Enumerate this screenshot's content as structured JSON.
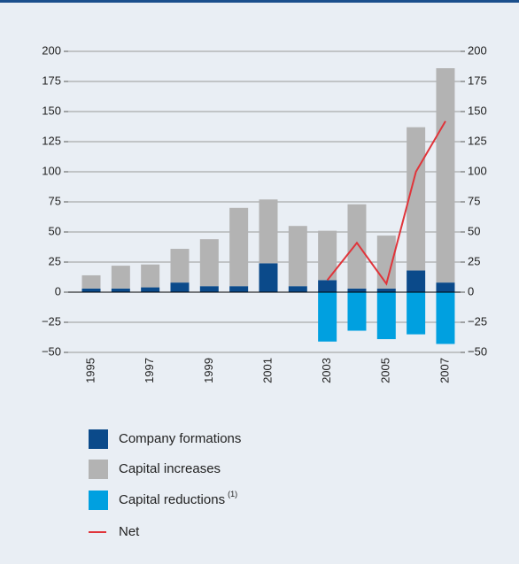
{
  "chart_data": {
    "type": "bar",
    "categories": [
      "1995",
      null,
      "1997",
      null,
      "1999",
      null,
      "2001",
      null,
      "2003",
      null,
      "2005",
      null,
      "2007"
    ],
    "series": [
      {
        "name": "Company formations",
        "color": "#0b4a8a",
        "values": [
          3,
          3,
          4,
          8,
          5,
          5,
          24,
          5,
          10,
          3,
          3,
          18,
          8
        ]
      },
      {
        "name": "Capital increases",
        "color": "#b3b3b3",
        "values": [
          11,
          19,
          19,
          28,
          39,
          65,
          53,
          50,
          41,
          70,
          44,
          119,
          178
        ]
      },
      {
        "name": "Capital reductions",
        "name_note": "(1)",
        "color": "#00a0e0",
        "values": [
          null,
          null,
          null,
          null,
          null,
          null,
          null,
          null,
          -41,
          -32,
          -39,
          -35,
          -43
        ]
      },
      {
        "name": "Net",
        "type": "line",
        "color": "#e0343a",
        "values": [
          null,
          null,
          null,
          null,
          null,
          null,
          null,
          null,
          10,
          41,
          7,
          100,
          142
        ]
      }
    ],
    "ylim": [
      -50,
      200
    ],
    "yticks": [
      {
        "value": -50,
        "label": "−50"
      },
      {
        "value": -25,
        "label": "−25"
      },
      0,
      25,
      50,
      75,
      100,
      125,
      150,
      175,
      200
    ],
    "y2lim": [
      -50,
      200
    ],
    "y2ticks": [
      {
        "value": -50,
        "label": "−50"
      },
      {
        "value": -25,
        "label": "−25"
      },
      0,
      25,
      50,
      75,
      100,
      125,
      150,
      175,
      200
    ],
    "grid": true,
    "legend": "bottom"
  }
}
